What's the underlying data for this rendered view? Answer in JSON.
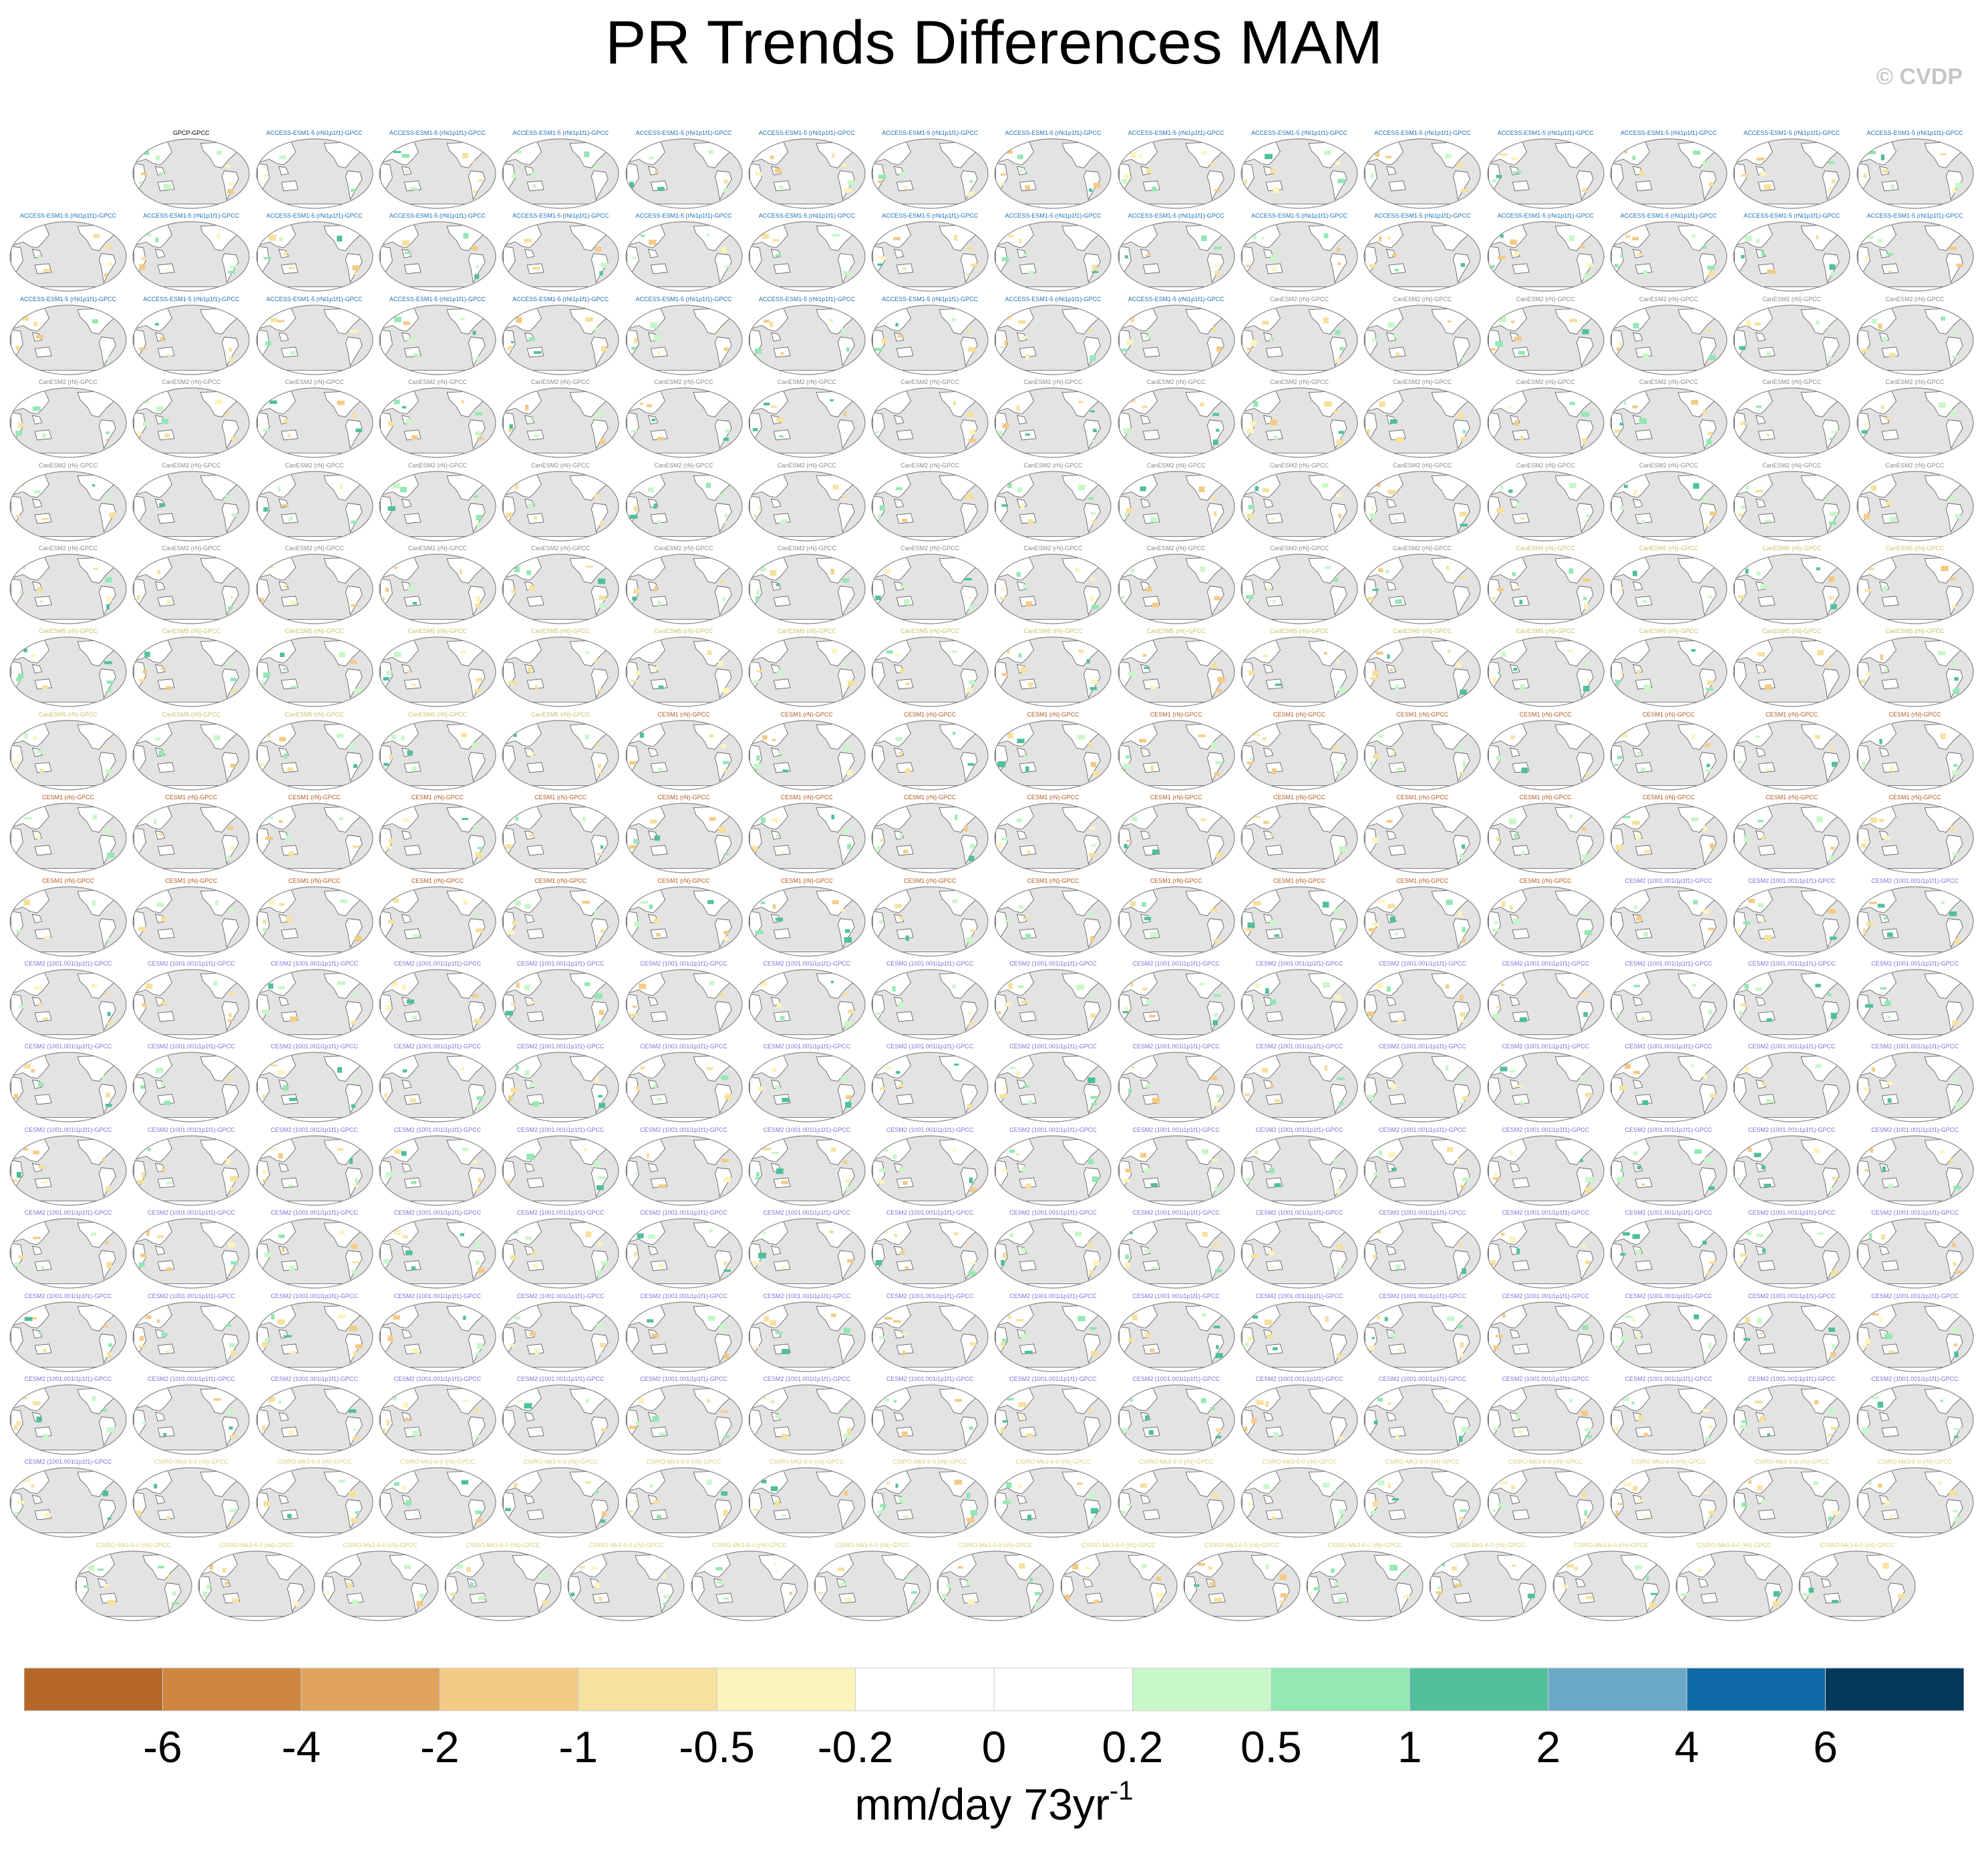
{
  "title": "PR Trends Differences MAM",
  "watermark": "© CVDP",
  "chart_data": {
    "type": "heatmap",
    "title": "PR Trends Differences MAM",
    "subplot_description": "grid of global map panels, one per model ensemble member minus GPCC",
    "panel_rows": [
      15,
      16,
      16,
      16,
      16,
      16,
      16,
      16,
      16,
      16,
      16,
      16,
      16,
      16,
      16,
      16,
      16,
      15
    ],
    "panel_colors": {
      "land": "#ffffff",
      "ocean": "#e3e3e3",
      "frame": "#888888",
      "coast": "#555555"
    },
    "panel_groups": [
      {
        "label": "GPCP-GPCC",
        "count": 1,
        "color": "#000000"
      },
      {
        "label": "ACCESS-ESM1-5 (rNi1p1f1)-GPCC",
        "count": 40,
        "color": "#1f6fb4"
      },
      {
        "label": "CanESM2 (rN)-GPCC",
        "count": 50,
        "color": "#8a8a8a"
      },
      {
        "label": "CanESM5 (rN)-GPCC",
        "count": 25,
        "color": "#c9c26a"
      },
      {
        "label": "CESM1 (rN)-GPCC",
        "count": 40,
        "color": "#b05a1e"
      },
      {
        "label": "CESM2 (1001.001i1p1f1)-GPCC",
        "count": 100,
        "color": "#7d72d6"
      },
      {
        "label": "CSIRO-Mk3-6-0 (rN)-GPCC",
        "count": 30,
        "color": "#d8cf7a"
      }
    ],
    "colorbar": {
      "label": "mm/day 73yr",
      "label_superscript": "-1",
      "tick_labels": [
        "-6",
        "-4",
        "-2",
        "-1",
        "-0.5",
        "-0.2",
        "0",
        "0.2",
        "0.5",
        "1",
        "2",
        "4",
        "6"
      ],
      "colors": [
        "#b5672a",
        "#cd853f",
        "#dfa35e",
        "#f4cb86",
        "#f6e19f",
        "#fdf3bd",
        "#ffffff",
        "#ffffff",
        "#c8f7c9",
        "#93e8b3",
        "#4fbf9c",
        "#69a8c6",
        "#0d6aa6",
        "#04385b"
      ]
    }
  }
}
